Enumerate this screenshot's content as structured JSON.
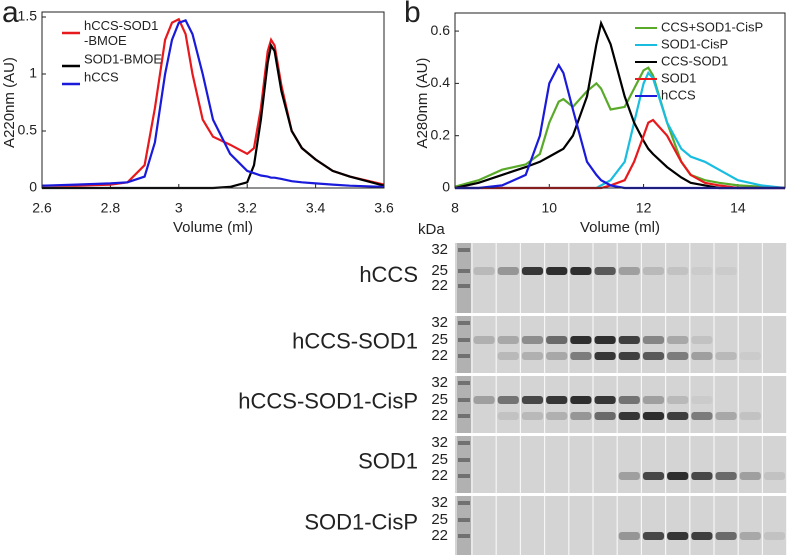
{
  "chart_data": [
    {
      "type": "line",
      "panel": "a",
      "xlabel": "Volume (ml)",
      "ylabel": "A220nm (AU)",
      "xlim": [
        2.6,
        3.6
      ],
      "xticks": [
        2.6,
        2.8,
        3,
        3.2,
        3.4,
        3.6
      ],
      "ylim": [
        0,
        1.5
      ],
      "yticks": [
        0,
        0.5,
        1,
        1.5
      ],
      "legend": "upper left",
      "x": [
        2.6,
        2.7,
        2.8,
        2.85,
        2.9,
        2.93,
        2.96,
        2.98,
        3.0,
        3.02,
        3.04,
        3.07,
        3.1,
        3.15,
        3.2,
        3.22,
        3.24,
        3.26,
        3.27,
        3.28,
        3.3,
        3.33,
        3.36,
        3.4,
        3.45,
        3.5,
        3.6
      ],
      "series": [
        {
          "name": "hCCS-SOD1\n-BMOE",
          "color": "#e8191c",
          "values": [
            0.02,
            0.02,
            0.03,
            0.05,
            0.2,
            0.7,
            1.3,
            1.45,
            1.48,
            1.35,
            1.0,
            0.6,
            0.45,
            0.38,
            0.3,
            0.35,
            0.7,
            1.2,
            1.3,
            1.25,
            0.9,
            0.5,
            0.35,
            0.25,
            0.15,
            0.1,
            0.03
          ]
        },
        {
          "name": "SOD1-BMOE",
          "color": "#000000",
          "values": [
            0,
            0,
            0,
            0,
            0,
            0,
            0,
            0,
            0,
            0,
            0,
            0,
            0,
            0.01,
            0.05,
            0.2,
            0.6,
            1.1,
            1.25,
            1.2,
            0.85,
            0.5,
            0.35,
            0.25,
            0.15,
            0.1,
            0.02
          ]
        },
        {
          "name": "hCCS",
          "color": "#1a1adb",
          "values": [
            0.02,
            0.03,
            0.04,
            0.05,
            0.1,
            0.4,
            1.0,
            1.3,
            1.45,
            1.47,
            1.35,
            1.0,
            0.6,
            0.3,
            0.15,
            0.13,
            0.11,
            0.1,
            0.09,
            0.09,
            0.08,
            0.06,
            0.05,
            0.04,
            0.03,
            0.02,
            0.01
          ]
        }
      ]
    },
    {
      "type": "line",
      "panel": "b",
      "xlabel": "Volume (ml)",
      "ylabel": "A280nm (AU)",
      "xlim": [
        8,
        15
      ],
      "xticks": [
        8,
        10,
        12,
        14
      ],
      "ylim": [
        0,
        0.65
      ],
      "yticks": [
        0,
        0.2,
        0.4,
        0.6
      ],
      "legend": "upper right",
      "x": [
        8,
        8.5,
        9,
        9.5,
        9.8,
        10,
        10.2,
        10.3,
        10.5,
        10.8,
        11,
        11.1,
        11.3,
        11.6,
        11.8,
        12,
        12.1,
        12.2,
        12.5,
        12.8,
        13,
        13.3,
        13.6,
        14,
        14.5,
        15
      ],
      "series": [
        {
          "name": "CCS+SOD1-CisP",
          "color": "#5aaa2a",
          "values": [
            0.005,
            0.03,
            0.07,
            0.09,
            0.13,
            0.25,
            0.33,
            0.34,
            0.31,
            0.37,
            0.4,
            0.38,
            0.3,
            0.31,
            0.38,
            0.45,
            0.46,
            0.43,
            0.25,
            0.1,
            0.05,
            0.03,
            0.02,
            0.01,
            0.005,
            0
          ]
        },
        {
          "name": "SOD1-CisP",
          "color": "#18bde0",
          "values": [
            0,
            0,
            0,
            0,
            0,
            0,
            0,
            0,
            0,
            0,
            0,
            0.01,
            0.03,
            0.1,
            0.25,
            0.4,
            0.44,
            0.42,
            0.25,
            0.15,
            0.12,
            0.1,
            0.07,
            0.03,
            0.01,
            0
          ]
        },
        {
          "name": "CCS-SOD1",
          "color": "#000000",
          "values": [
            0,
            0.02,
            0.05,
            0.08,
            0.1,
            0.12,
            0.14,
            0.15,
            0.2,
            0.35,
            0.55,
            0.63,
            0.55,
            0.35,
            0.25,
            0.18,
            0.15,
            0.13,
            0.08,
            0.04,
            0.02,
            0.01,
            0,
            0,
            0,
            0
          ]
        },
        {
          "name": "SOD1",
          "color": "#e8191c",
          "values": [
            0,
            0,
            0,
            0,
            0,
            0,
            0,
            0,
            0,
            0,
            0,
            0,
            0.01,
            0.03,
            0.1,
            0.2,
            0.25,
            0.26,
            0.2,
            0.1,
            0.05,
            0.02,
            0.01,
            0,
            0,
            0
          ]
        },
        {
          "name": "hCCS",
          "color": "#1a1adb",
          "values": [
            0,
            0,
            0.01,
            0.05,
            0.2,
            0.4,
            0.47,
            0.44,
            0.3,
            0.1,
            0.05,
            0.03,
            0.01,
            0,
            0,
            0,
            0,
            0,
            0,
            0,
            0,
            0,
            0,
            0,
            0,
            0
          ]
        }
      ]
    }
  ],
  "gel": {
    "unit": "kDa",
    "markers": [
      "32",
      "25",
      "22"
    ],
    "rows": [
      "hCCS",
      "hCCS-SOD1",
      "hCCS-SOD1-CisP",
      "SOD1",
      "SOD1-CisP"
    ]
  }
}
